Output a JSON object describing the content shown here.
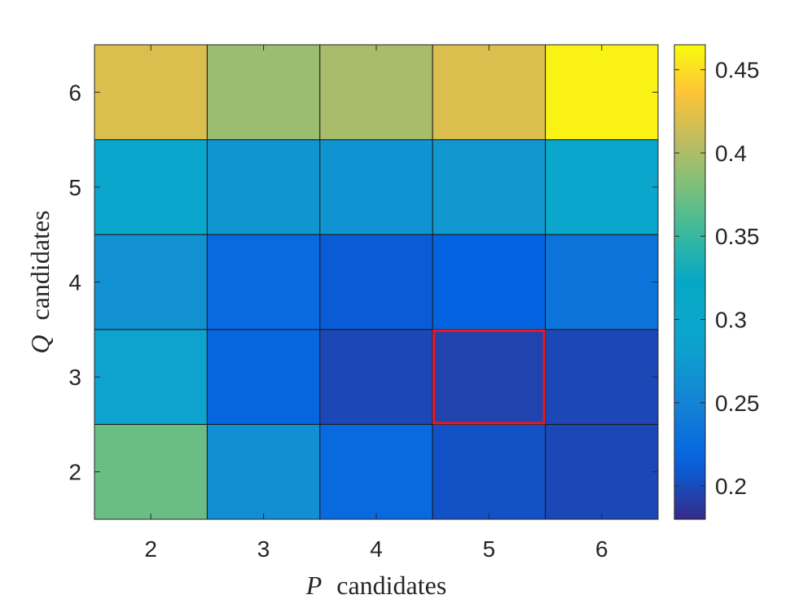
{
  "chart_data": {
    "type": "heatmap",
    "x_categories": [
      "2",
      "3",
      "4",
      "5",
      "6"
    ],
    "y_categories": [
      "2",
      "3",
      "4",
      "5",
      "6"
    ],
    "values": [
      [
        0.372,
        0.262,
        0.222,
        0.204,
        0.198
      ],
      [
        0.285,
        0.218,
        0.198,
        0.195,
        0.198
      ],
      [
        0.265,
        0.222,
        0.21,
        0.214,
        0.232
      ],
      [
        0.3,
        0.27,
        0.268,
        0.272,
        0.3
      ],
      [
        0.42,
        0.392,
        0.398,
        0.42,
        0.46
      ]
    ],
    "xlabel": {
      "symbol": "P",
      "text": "candidates"
    },
    "ylabel": {
      "symbol": "Q",
      "text": "candidates"
    },
    "colorbar": {
      "min": 0.18,
      "max": 0.465,
      "ticks": [
        "0.2",
        "0.25",
        "0.3",
        "0.35",
        "0.4",
        "0.45"
      ],
      "colormap": "parula"
    },
    "highlight": {
      "x": "5",
      "y": "3",
      "color": "#e8191f"
    },
    "grid": false
  }
}
